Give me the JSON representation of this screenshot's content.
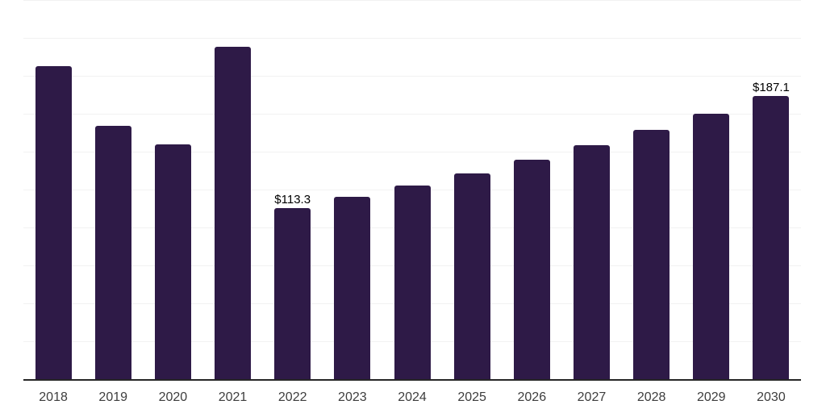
{
  "chart_data": {
    "type": "bar",
    "title": "",
    "xlabel": "",
    "ylabel": "",
    "categories": [
      "2018",
      "2019",
      "2020",
      "2021",
      "2022",
      "2023",
      "2024",
      "2025",
      "2026",
      "2027",
      "2028",
      "2029",
      "2030"
    ],
    "values": [
      206.9,
      167.6,
      155.3,
      219.7,
      113.3,
      120.7,
      128.2,
      136.2,
      145.2,
      154.8,
      164.9,
      175.5,
      187.1
    ],
    "point_labels": {
      "2022": "$113.3",
      "2030": "$187.1"
    },
    "ylim": [
      0,
      250
    ],
    "grid_step": 25,
    "grid": true,
    "legend_position": "none",
    "colors": {
      "bar": "#2E1A47",
      "gridline": "#F2F2F2",
      "axis": "#262626",
      "tick_label": "#3D3D3D",
      "value_label": "#000000",
      "background": "#FFFFFF"
    }
  }
}
